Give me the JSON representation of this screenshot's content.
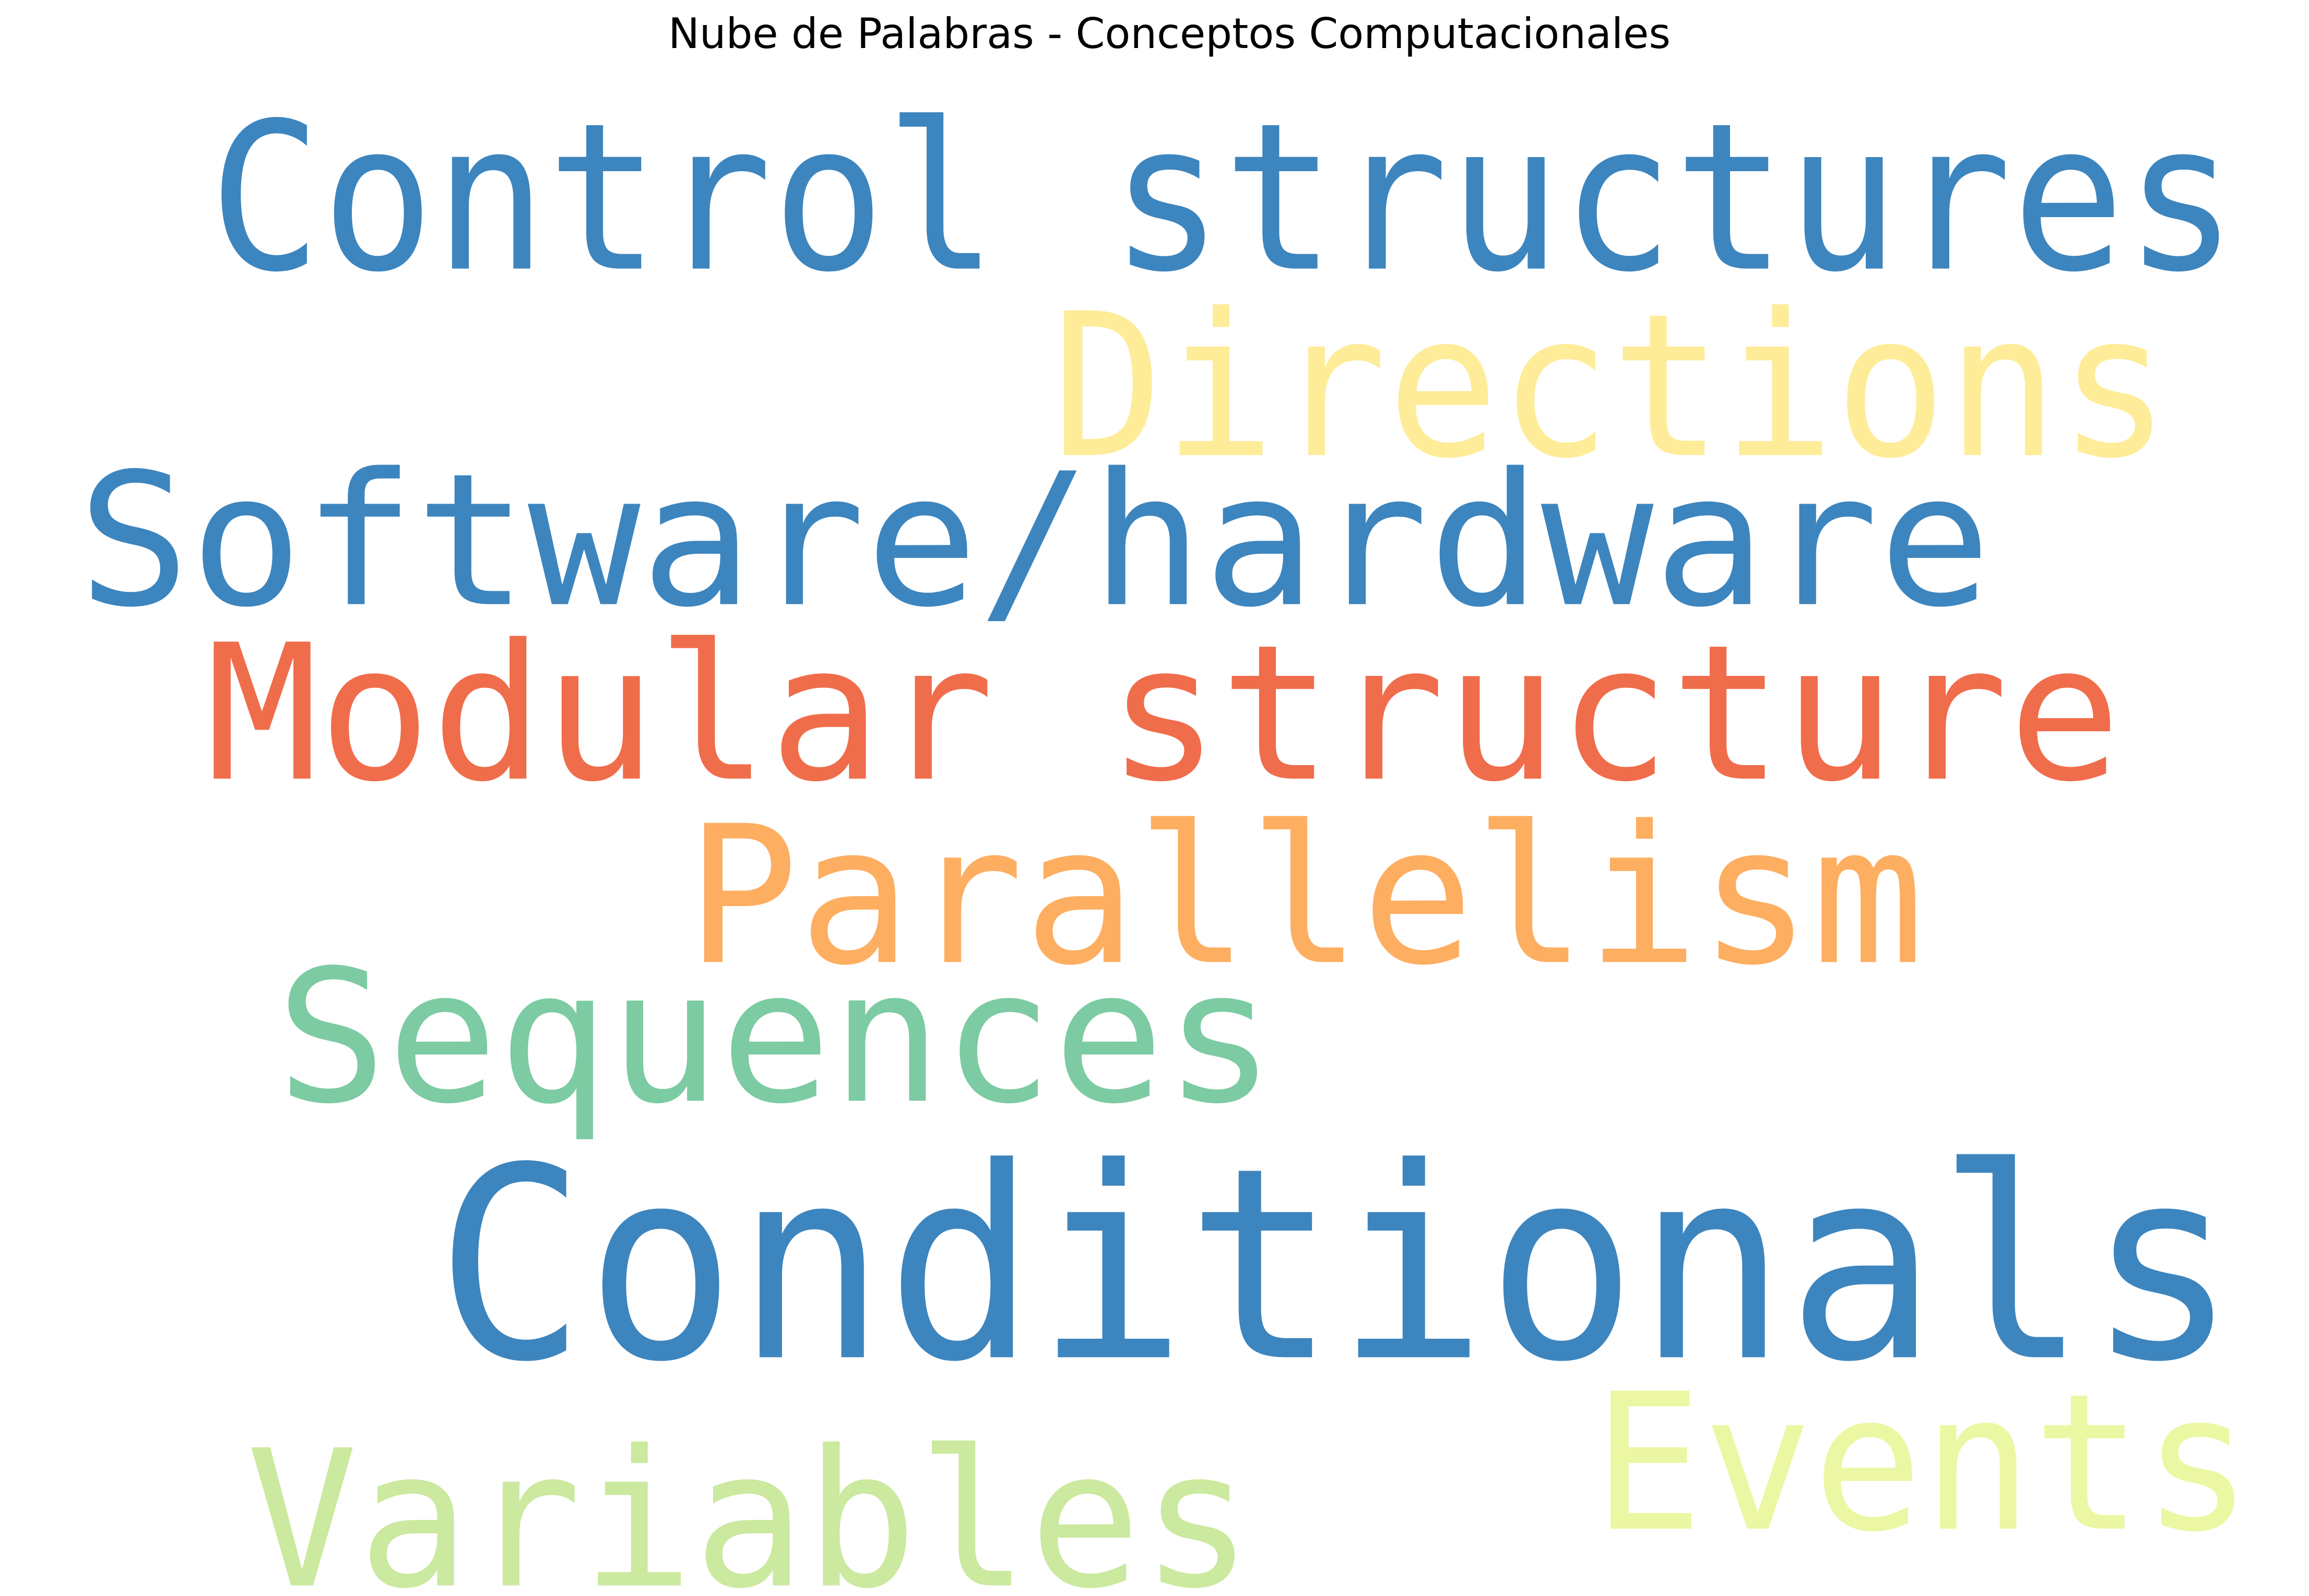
{
  "title": "Nube de Palabras - Conceptos Computacionales",
  "words": [
    {
      "text": "Control structures",
      "color": "#3d85be"
    },
    {
      "text": "Directions",
      "color": "#feec98"
    },
    {
      "text": "Software/hardware",
      "color": "#3d85be"
    },
    {
      "text": "Modular structure",
      "color": "#f06d4b"
    },
    {
      "text": "Parallelism",
      "color": "#fdae61"
    },
    {
      "text": "Sequences",
      "color": "#7ccba2"
    },
    {
      "text": "Conditionals",
      "color": "#3d85be"
    },
    {
      "text": "Events",
      "color": "#ecf7a3"
    },
    {
      "text": "Variables",
      "color": "#cbe99f"
    }
  ]
}
